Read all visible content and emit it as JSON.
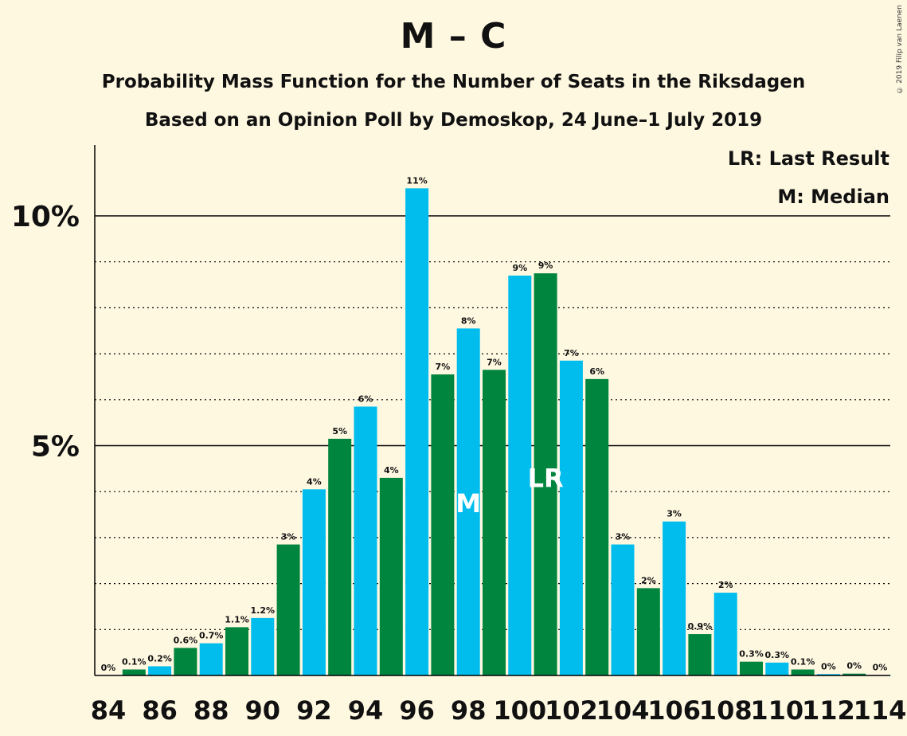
{
  "header": {
    "title": "M – C",
    "subtitle_1": "Probability Mass Function for the Number of Seats in the Riksdagen",
    "subtitle_2": "Based on an Opinion Poll by Demoskop, 24 June–1 July 2019",
    "copyright": "© 2019 Filip van Laenen"
  },
  "legend": {
    "last_result": "LR: Last Result",
    "median": "M: Median"
  },
  "colors": {
    "background": "#fff8e1",
    "bar_blue": "#00bdee",
    "bar_green": "#00853f",
    "axis": "#000000"
  },
  "chart_data": {
    "type": "bar",
    "x": [
      84,
      85,
      86,
      87,
      88,
      89,
      90,
      91,
      92,
      93,
      94,
      95,
      96,
      97,
      98,
      99,
      100,
      101,
      102,
      103,
      104,
      105,
      106,
      107,
      108,
      109,
      110,
      111,
      112,
      113,
      114
    ],
    "values": [
      0.0,
      0.13,
      0.2,
      0.6,
      0.7,
      1.05,
      1.25,
      2.85,
      4.05,
      5.15,
      5.85,
      4.3,
      10.6,
      6.55,
      7.55,
      6.65,
      8.7,
      8.75,
      6.85,
      6.45,
      2.85,
      1.9,
      3.35,
      0.9,
      1.8,
      0.3,
      0.28,
      0.13,
      0.03,
      0.04,
      0.01
    ],
    "data_labels": [
      "0%",
      "0.1%",
      "0.2%",
      "0.6%",
      "0.7%",
      "1.1%",
      "1.2%",
      "3%",
      "4%",
      "5%",
      "6%",
      "4%",
      "11%",
      "7%",
      "8%",
      "7%",
      "9%",
      "9%",
      "7%",
      "6%",
      "3%",
      "2%",
      "3%",
      "0.9%",
      "2%",
      "0.3%",
      "0.3%",
      "0.1%",
      "0%",
      "0%",
      "0%"
    ],
    "x_tick_labels": [
      "84",
      "86",
      "88",
      "90",
      "92",
      "94",
      "96",
      "98",
      "100",
      "102",
      "104",
      "106",
      "108",
      "110",
      "112",
      "114"
    ],
    "y_tick_labels": [
      "10%",
      "5%"
    ],
    "y_ticks": [
      10,
      5
    ],
    "ylim": [
      0,
      11.5
    ],
    "median_seat": 98,
    "median_label": "M",
    "last_result_seat": 101,
    "last_result_label": "LR",
    "grid": "dotted lines every 1%, solid at 5% and 10%"
  }
}
